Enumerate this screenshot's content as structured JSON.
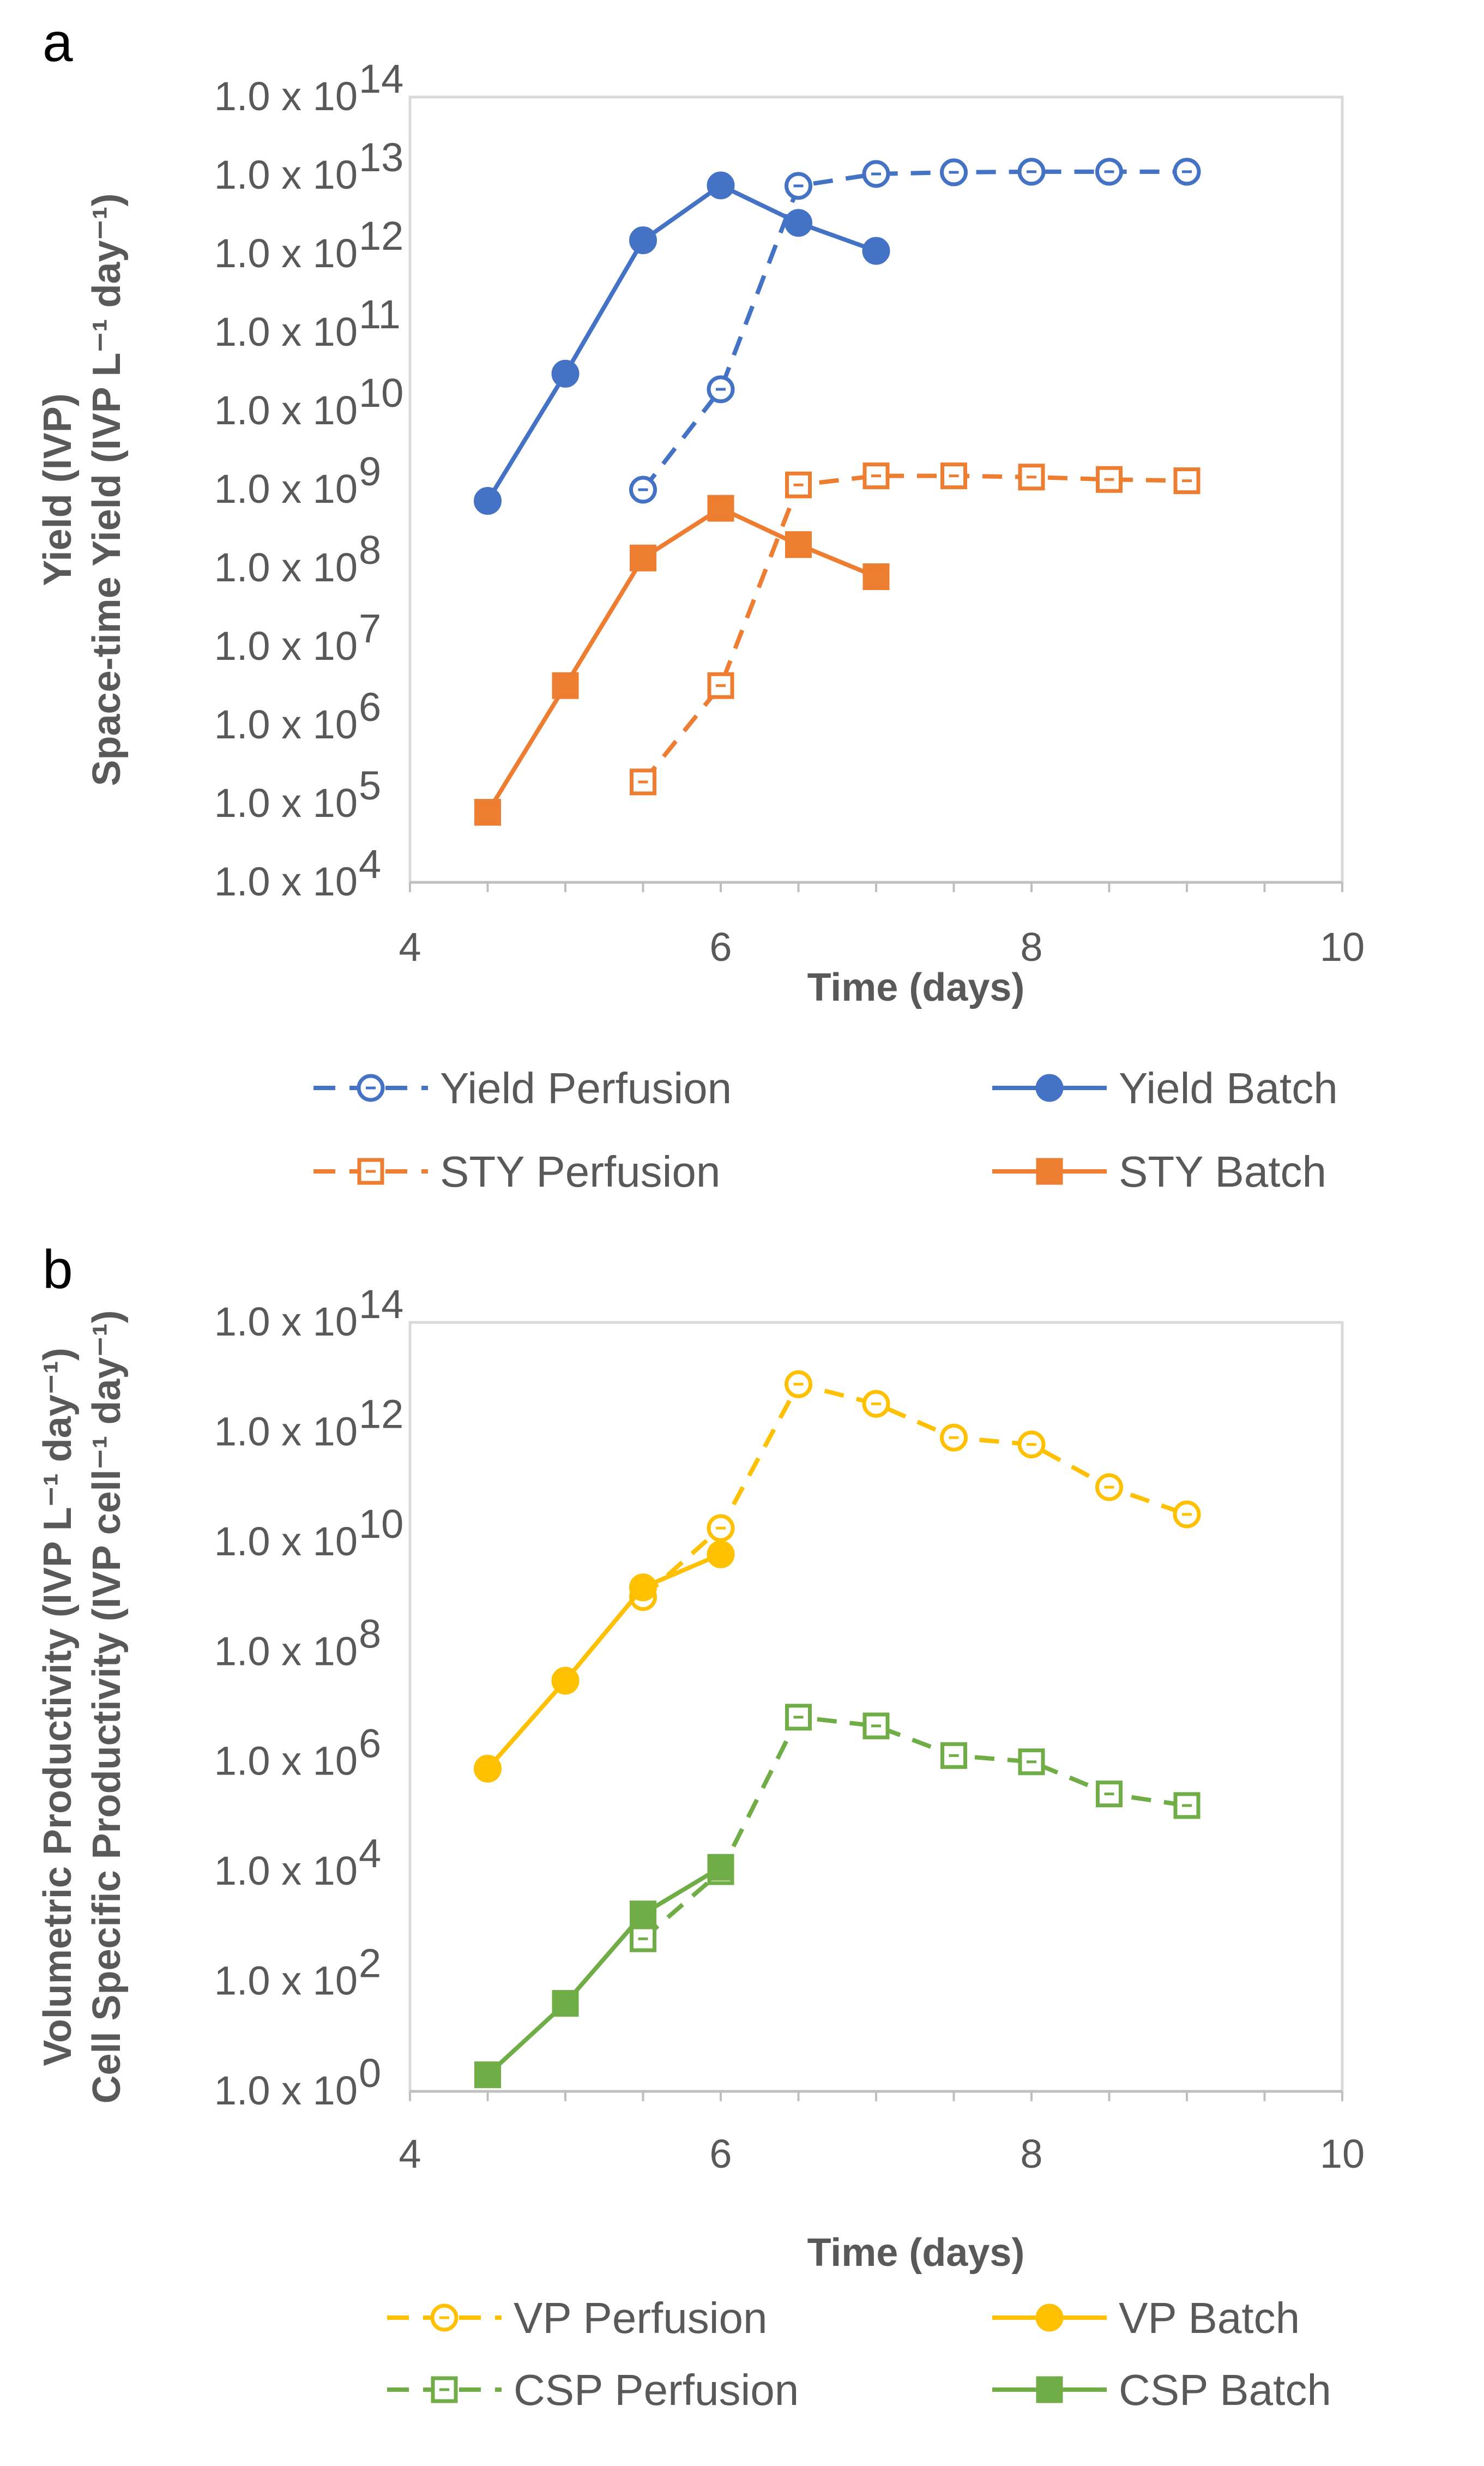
{
  "chart_data": [
    {
      "panel": "a",
      "type": "line",
      "title": "",
      "xlabel": "Time (days)",
      "ylabel": [
        "Yield (IVP)",
        "Space-time Yield (IVP L⁻¹ day⁻¹)"
      ],
      "xlim": [
        4,
        10
      ],
      "x_ticks": [
        "4",
        "6",
        "8",
        "10"
      ],
      "ylim_log10": [
        4,
        14
      ],
      "y_ticks_base": "1.0 x 10",
      "y_ticks_exp": [
        "4",
        "5",
        "6",
        "7",
        "8",
        "9",
        "10",
        "11",
        "12",
        "13",
        "14"
      ],
      "grid": false,
      "legend_position": "bottom",
      "series": [
        {
          "name": "Yield Perfusion",
          "color": "#4472C4",
          "style": "dashed",
          "marker": "circle-open",
          "x": [
            5.5,
            6,
            6.5,
            7,
            7.5,
            8,
            8.5,
            9
          ],
          "y": [
            1000000000.0,
            19000000000.0,
            7400000000000.0,
            10500000000000.0,
            11000000000000.0,
            11200000000000.0,
            11200000000000.0,
            11200000000000.0
          ]
        },
        {
          "name": "Yield Batch",
          "color": "#4472C4",
          "style": "solid",
          "marker": "circle-filled",
          "x": [
            4.5,
            5,
            5.5,
            6,
            6.5,
            7
          ],
          "y": [
            720000000.0,
            30000000000.0,
            1500000000000.0,
            7500000000000.0,
            2500000000000.0,
            1100000000000.0
          ]
        },
        {
          "name": "STY Perfusion",
          "color": "#ED7D31",
          "style": "dashed",
          "marker": "square-open",
          "x": [
            5.5,
            6,
            6.5,
            7,
            7.5,
            8,
            8.5,
            9
          ],
          "y": [
            190000.0,
            3200000.0,
            1150000000.0,
            1500000000.0,
            1500000000.0,
            1450000000.0,
            1350000000.0,
            1300000000.0
          ]
        },
        {
          "name": "STY Batch",
          "color": "#ED7D31",
          "style": "solid",
          "marker": "square-filled",
          "x": [
            4.5,
            5,
            5.5,
            6,
            6.5,
            7
          ],
          "y": [
            78000.0,
            3200000.0,
            135000000.0,
            580000000.0,
            200000000.0,
            78000000.0
          ]
        }
      ]
    },
    {
      "panel": "b",
      "type": "line",
      "title": "",
      "xlabel": "Time (days)",
      "ylabel": [
        "Volumetric Productivity (IVP L⁻¹ day⁻¹)",
        "Cell Specific Productivity (IVP cell⁻¹ day⁻¹)"
      ],
      "xlim": [
        4,
        10
      ],
      "x_ticks": [
        "4",
        "6",
        "8",
        "10"
      ],
      "ylim_log10": [
        0,
        14
      ],
      "y_ticks_base": "1.0 x 10",
      "y_ticks_exp": [
        "0",
        "2",
        "4",
        "6",
        "8",
        "10",
        "12",
        "14"
      ],
      "grid": false,
      "legend_position": "bottom",
      "series": [
        {
          "name": "VP Perfusion",
          "color": "#FFC000",
          "style": "dashed",
          "marker": "circle-open",
          "x": [
            5.5,
            6,
            6.5,
            7,
            7.5,
            8,
            8.5,
            9
          ],
          "y": [
            1000000000.0,
            18000000000.0,
            7500000000000.0,
            3300000000000.0,
            800000000000.0,
            600000000000.0,
            100000000000.0,
            32000000000.0
          ]
        },
        {
          "name": "VP Batch",
          "color": "#FFC000",
          "style": "solid",
          "marker": "circle-filled",
          "x": [
            4.5,
            5,
            5.5,
            6
          ],
          "y": [
            750000.0,
            30000000.0,
            1500000000.0,
            6000000000.0
          ]
        },
        {
          "name": "CSP Perfusion",
          "color": "#70AD47",
          "style": "dashed",
          "marker": "square-open",
          "x": [
            5.5,
            6,
            6.5,
            7,
            7.5,
            8,
            8.5,
            9
          ],
          "y": [
            600.0,
            10000.0,
            6500000.0,
            4500000.0,
            1300000.0,
            1000000.0,
            260000.0,
            160000.0
          ]
        },
        {
          "name": "CSP Batch",
          "color": "#70AD47",
          "style": "solid",
          "marker": "square-filled",
          "x": [
            4.5,
            5,
            5.5,
            6
          ],
          "y": [
            2.0,
            40.0,
            1700.0,
            12000.0
          ]
        }
      ]
    }
  ]
}
